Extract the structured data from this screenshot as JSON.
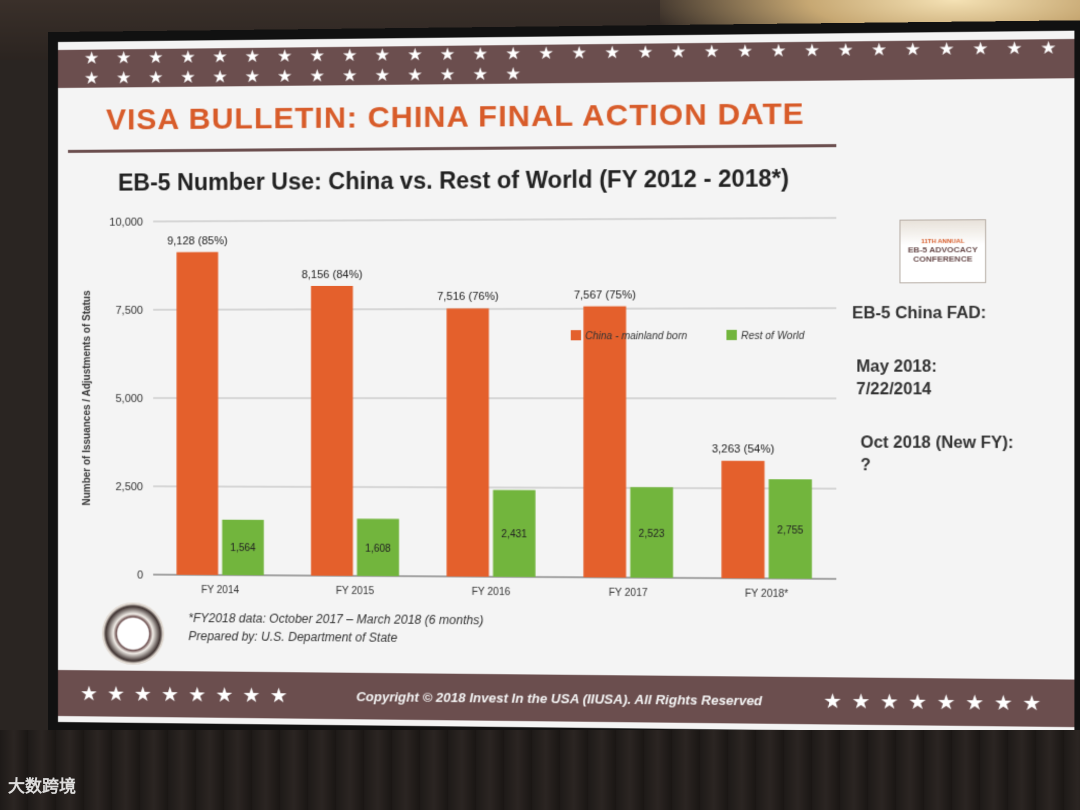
{
  "slide": {
    "title": "VISA BULLETIN: CHINA FINAL ACTION DATE",
    "subtitle": "EB-5 Number Use: China vs. Rest of World (FY 2012 - 2018*)",
    "copyright": "Copyright © 2018 Invest In the USA (IIUSA). All Rights Reserved",
    "stars_top": "★ ★ ★ ★ ★ ★ ★ ★ ★ ★ ★ ★ ★ ★ ★ ★ ★ ★ ★ ★ ★ ★ ★ ★ ★ ★ ★ ★ ★ ★ ★ ★ ★ ★ ★ ★ ★ ★ ★ ★ ★ ★ ★ ★",
    "stars_bottom_left": "★★★★★★★★",
    "stars_bottom_right": "★★★★★★★★",
    "footnote": "*FY2018 data: October 2017 – March 2018 (6 months)",
    "prepared_by": "Prepared by: U.S. Department of State",
    "logo_top": "11TH ANNUAL",
    "logo_text": "EB-5 ADVOCACY",
    "logo_sub": "CONFERENCE"
  },
  "side_panel": {
    "heading": "EB-5 China FAD:",
    "may_label": "May 2018:",
    "may_value": "7/22/2014",
    "oct_label": "Oct 2018 (New FY):",
    "oct_value": "?"
  },
  "watermark": "大数跨境",
  "colors": {
    "china": "#e4602c",
    "rest_of_world": "#72b53d",
    "accent": "#d85c2a",
    "band": "#6b4e4e"
  },
  "chart_data": {
    "type": "bar",
    "categories": [
      "FY 2014",
      "FY 2015",
      "FY 2016",
      "FY 2017",
      "FY 2018*"
    ],
    "series": [
      {
        "name": "China - mainland born",
        "values": [
          9128,
          8156,
          7516,
          7567,
          3263
        ],
        "labels": [
          "9,128 (85%)",
          "8,156 (84%)",
          "7,516 (76%)",
          "7,567 (75%)",
          "3,263 (54%)"
        ]
      },
      {
        "name": "Rest of World",
        "values": [
          1564,
          1608,
          2431,
          2523,
          2755
        ],
        "labels": [
          "1,564",
          "1,608",
          "2,431",
          "2,523",
          "2,755"
        ]
      }
    ],
    "ylabel": "Number of Issuances / Adjustments of Status",
    "xlabel": "",
    "ylim": [
      0,
      10000
    ],
    "yticks": [
      0,
      2500,
      5000,
      7500,
      10000
    ],
    "ytick_labels": [
      "0",
      "2,500",
      "5,000",
      "7,500",
      "10,000"
    ],
    "legend": "top-right",
    "grid": true
  }
}
